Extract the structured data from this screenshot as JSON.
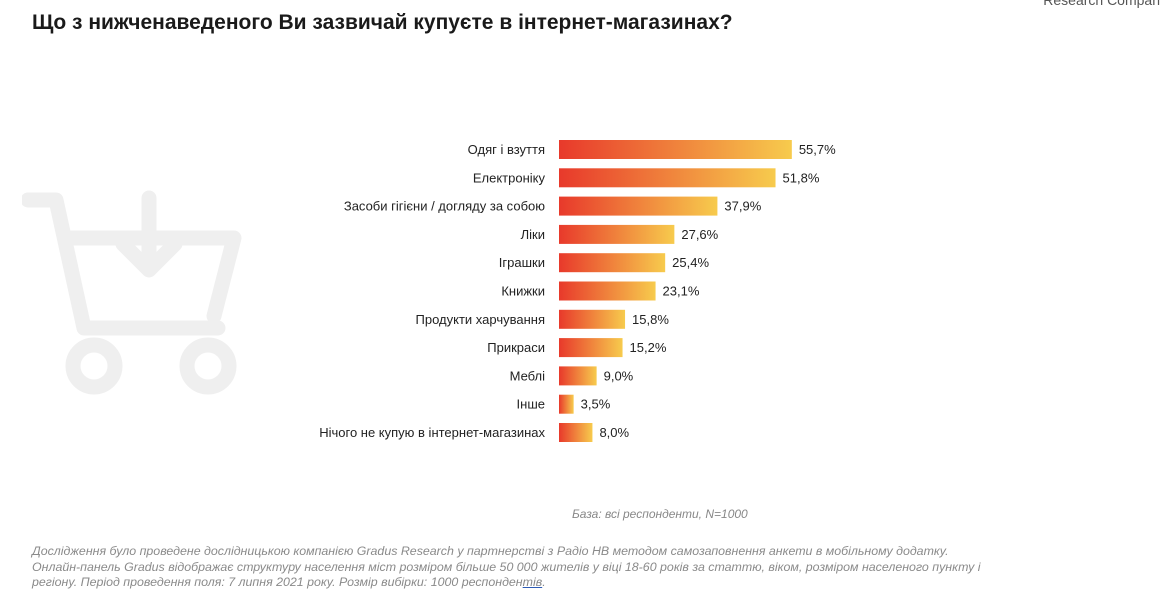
{
  "header": {
    "title": "Що з нижченаведеного Ви зазвичай купуєте в інтернет-магазинах?",
    "brand": "Research Compan"
  },
  "icons": {
    "background": "shopping-cart-download-icon"
  },
  "colors": {
    "bar_start": "#e8392b",
    "bar_end": "#f7cb4d",
    "label": "#222222",
    "cart": "#efefef"
  },
  "chart_data": {
    "type": "bar",
    "orientation": "horizontal",
    "title": "Що з нижченаведеного Ви зазвичай купуєте в інтернет-магазинах?",
    "categories": [
      "Одяг і взуття",
      "Електроніку",
      "Засоби гігієни / догляду за собою",
      "Ліки",
      "Іграшки",
      "Книжки",
      "Продукти харчування",
      "Прикраси",
      "Меблі",
      "Інше",
      "Нічого не купую в інтернет-магазинах"
    ],
    "values": [
      55.7,
      51.8,
      37.9,
      27.6,
      25.4,
      23.1,
      15.8,
      15.2,
      9.0,
      3.5,
      8.0
    ],
    "value_labels": [
      "55,7%",
      "51,8%",
      "37,9%",
      "27,6%",
      "25,4%",
      "23,1%",
      "15,8%",
      "15,2%",
      "9,0%",
      "3,5%",
      "8,0%"
    ],
    "unit": "%",
    "xlim": [
      0,
      100
    ],
    "grid": false,
    "legend": "none"
  },
  "base_note": "База: всі респонденти, N=1000",
  "footer": {
    "line1": "Дослідження було проведене дослідницькою компанією Gradus Research у партнерстві з Радіо НВ методом самозаповнення анкети в мобільному додатку.",
    "line2": "Онлайн-панель Gradus відображає структуру населення міст розміром більше 50 000 жителів у віці 18-60 років за статтю, віком, розміром населеного пункту і",
    "line3_main": "регіону. Період проведення поля: 7 липня 2021 року. Розмір вибірки: 1000 респонден",
    "line3_tail": "тів",
    "line3_end": "."
  }
}
